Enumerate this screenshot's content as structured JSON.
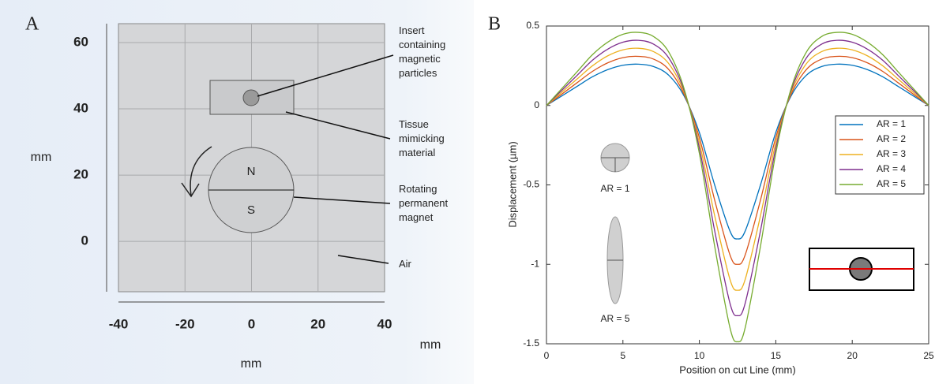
{
  "chart_data": [
    {
      "type": "diagram",
      "panel_label": "A",
      "xlim": [
        -40,
        40
      ],
      "ylim": [
        -15.2,
        65.7
      ],
      "xticks": [
        -40,
        -20,
        0,
        20,
        40
      ],
      "yticks": [
        0,
        20,
        40,
        60
      ],
      "grid": true,
      "ylabel": "mm",
      "xlabel": "mm",
      "x_unit": "mm",
      "pole_labels": [
        "N",
        "S"
      ],
      "annotations": [
        "Insert containing magnetic particles",
        "Tissue mimicking material",
        "Rotating permanent magnet",
        "Air"
      ]
    },
    {
      "type": "line",
      "panel_label": "B",
      "xlabel": "Position on cut Line (mm)",
      "ylabel": "Displacement (µm)",
      "xlim": [
        0,
        25
      ],
      "ylim": [
        -1.5,
        0.5
      ],
      "xticks": [
        0,
        5,
        10,
        15,
        20,
        25
      ],
      "yticks": [
        -1.5,
        -1,
        -0.5,
        0,
        0.5
      ],
      "grid": false,
      "legend": "right",
      "inset_labels": [
        "AR = 1",
        "AR = 5"
      ],
      "x": [
        0,
        1,
        2,
        3,
        4,
        5,
        6,
        7,
        8,
        9,
        10,
        11,
        12,
        12.5,
        13,
        14,
        15,
        16,
        17,
        18,
        19,
        20,
        21,
        22,
        23,
        24,
        25
      ],
      "series": [
        {
          "name": "AR = 1",
          "color": "#0072bd",
          "values": [
            0,
            0.06,
            0.12,
            0.18,
            0.225,
            0.253,
            0.26,
            0.245,
            0.19,
            0.06,
            -0.17,
            -0.5,
            -0.79,
            -0.84,
            -0.79,
            -0.5,
            -0.17,
            0.06,
            0.19,
            0.245,
            0.26,
            0.253,
            0.225,
            0.18,
            0.12,
            0.06,
            0
          ]
        },
        {
          "name": "AR = 2",
          "color": "#d95319",
          "values": [
            0,
            0.071,
            0.143,
            0.214,
            0.268,
            0.301,
            0.309,
            0.292,
            0.226,
            0.071,
            -0.202,
            -0.595,
            -0.94,
            -1.0,
            -0.94,
            -0.595,
            -0.202,
            0.071,
            0.226,
            0.292,
            0.309,
            0.301,
            0.268,
            0.214,
            0.143,
            0.071,
            0
          ]
        },
        {
          "name": "AR = 3",
          "color": "#edb120",
          "values": [
            0,
            0.083,
            0.166,
            0.249,
            0.312,
            0.35,
            0.36,
            0.339,
            0.263,
            0.083,
            -0.235,
            -0.693,
            -1.094,
            -1.163,
            -1.094,
            -0.693,
            -0.235,
            0.083,
            0.263,
            0.339,
            0.36,
            0.35,
            0.312,
            0.249,
            0.166,
            0.083,
            0
          ]
        },
        {
          "name": "AR = 4",
          "color": "#7e2f8e",
          "values": [
            0,
            0.095,
            0.189,
            0.284,
            0.354,
            0.398,
            0.41,
            0.386,
            0.299,
            0.095,
            -0.268,
            -0.788,
            -1.244,
            -1.323,
            -1.244,
            -0.788,
            -0.268,
            0.095,
            0.299,
            0.386,
            0.41,
            0.398,
            0.354,
            0.284,
            0.189,
            0.095,
            0
          ]
        },
        {
          "name": "AR = 5",
          "color": "#77ac30",
          "values": [
            0,
            0.106,
            0.212,
            0.319,
            0.398,
            0.448,
            0.46,
            0.434,
            0.336,
            0.106,
            -0.301,
            -0.885,
            -1.398,
            -1.487,
            -1.398,
            -0.885,
            -0.301,
            0.106,
            0.336,
            0.434,
            0.46,
            0.448,
            0.398,
            0.319,
            0.212,
            0.106,
            0
          ]
        }
      ]
    }
  ]
}
